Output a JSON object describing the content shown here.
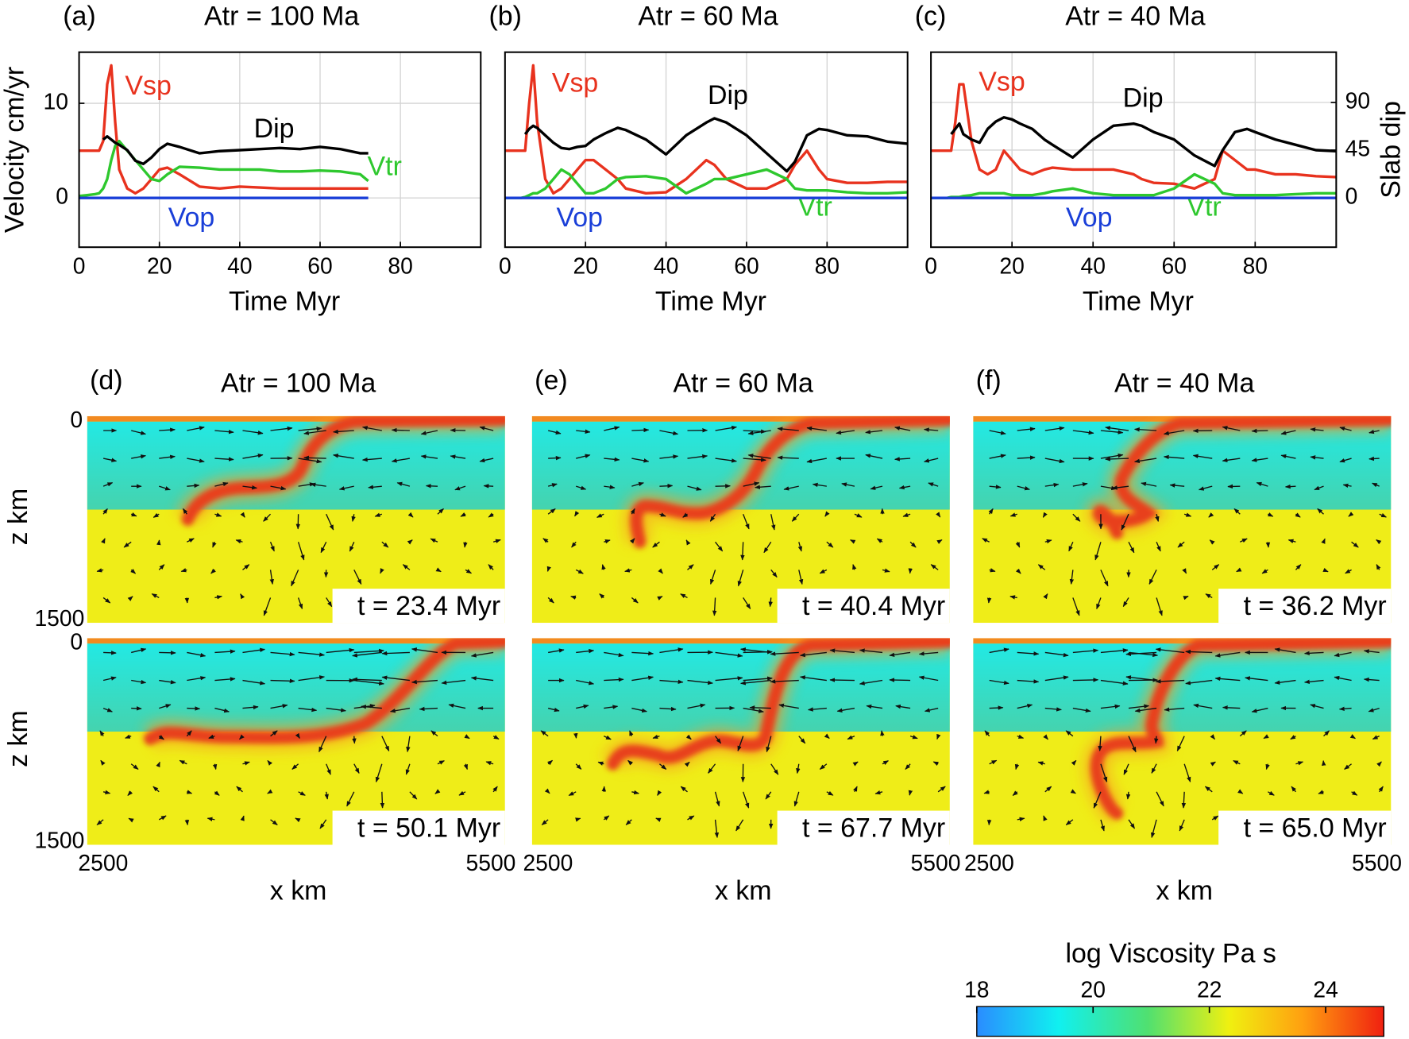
{
  "chart_data": [
    {
      "type": "line",
      "label": "(a)",
      "title": "Atr = 100 Ma",
      "xlabel": "Time Myr",
      "ylabel": "Velocity cm/yr",
      "xlim": [
        0,
        100
      ],
      "xticks": [
        0,
        20,
        40,
        60,
        80
      ],
      "ylim": [
        -5.2,
        15.4
      ],
      "yticks": [
        0,
        10
      ],
      "y2lim": [
        -46.7,
        137.5
      ],
      "grid": true,
      "x": [
        0,
        2,
        4,
        5,
        6,
        7,
        8,
        9,
        10,
        12,
        14,
        16,
        18,
        20,
        22,
        25,
        30,
        35,
        40,
        45,
        50,
        55,
        60,
        65,
        70,
        72
      ],
      "series": [
        {
          "name": "Vsp",
          "color": "#e8321e",
          "values": [
            5,
            5,
            5,
            5,
            6,
            12,
            14,
            8,
            3,
            1,
            0.5,
            1,
            2,
            3,
            3.2,
            2.5,
            1.2,
            1,
            1.2,
            1.1,
            1,
            1,
            1,
            1,
            1,
            1
          ]
        },
        {
          "name": "Vtr",
          "color": "#2ec82e",
          "values": [
            0.2,
            0.3,
            0.4,
            0.5,
            1,
            2,
            4,
            5.5,
            6,
            5,
            4,
            3,
            2,
            1.8,
            2.5,
            3.3,
            3.2,
            3,
            3,
            3,
            2.8,
            2.8,
            2.9,
            2.8,
            2.5,
            1.8
          ]
        },
        {
          "name": "Vop",
          "color": "#1a3fd8",
          "values": [
            0,
            0,
            0,
            0,
            0,
            0,
            0,
            0,
            0,
            0,
            0,
            0,
            0,
            0,
            0,
            0,
            0,
            0,
            0,
            0,
            0,
            0,
            0,
            0,
            0,
            0
          ]
        },
        {
          "name": "Dip",
          "color": "#000000",
          "axis": "y2",
          "values": [
            null,
            null,
            null,
            null,
            55,
            58,
            55,
            52,
            50,
            45,
            35,
            32,
            38,
            46,
            51,
            48,
            42,
            44,
            45,
            46,
            47,
            46,
            48,
            46,
            42,
            42
          ]
        }
      ]
    },
    {
      "type": "line",
      "label": "(b)",
      "title": "Atr = 60 Ma",
      "xlabel": "Time Myr",
      "xlim": [
        0,
        100
      ],
      "xticks": [
        0,
        20,
        40,
        60,
        80
      ],
      "ylim": [
        -5.2,
        15.4
      ],
      "y2lim": [
        -46.7,
        137.5
      ],
      "grid": true,
      "x": [
        0,
        2,
        4,
        5,
        6,
        7,
        8,
        10,
        12,
        14,
        16,
        18,
        20,
        22,
        25,
        28,
        30,
        35,
        40,
        45,
        50,
        52,
        55,
        60,
        65,
        70,
        72,
        75,
        78,
        80,
        85,
        90,
        95,
        100
      ],
      "series": [
        {
          "name": "Vsp",
          "color": "#e8321e",
          "values": [
            5,
            5,
            5,
            5,
            10,
            14,
            8,
            2,
            0.5,
            1,
            2,
            3,
            4,
            4,
            3,
            2,
            1,
            0.5,
            0.6,
            2,
            4,
            3.5,
            2,
            1,
            1,
            2,
            3.5,
            5,
            3,
            2,
            1.6,
            1.6,
            1.7,
            1.7
          ]
        },
        {
          "name": "Vtr",
          "color": "#2ec82e",
          "values": [
            0,
            0,
            0,
            0.1,
            0.3,
            0.5,
            0.5,
            1,
            2,
            3,
            2.5,
            1.5,
            0.5,
            0.5,
            1,
            2,
            2.2,
            2.3,
            2,
            0.5,
            1.5,
            2,
            2,
            2.5,
            3,
            2,
            1,
            0.8,
            0.8,
            0.8,
            0.6,
            0.5,
            0.5,
            0.6
          ]
        },
        {
          "name": "Vop",
          "color": "#1a3fd8",
          "values": [
            0,
            0,
            0,
            0,
            0,
            0,
            0,
            0,
            0,
            0,
            0,
            0,
            0,
            0,
            0,
            0,
            0,
            0,
            0,
            0,
            0,
            0,
            0,
            0,
            0,
            0,
            0,
            0,
            0,
            0,
            0,
            0,
            0,
            0
          ]
        },
        {
          "name": "Dip",
          "color": "#000000",
          "axis": "y2",
          "values": [
            null,
            null,
            null,
            60,
            65,
            68,
            66,
            59,
            52,
            47,
            46,
            48,
            49,
            55,
            61,
            66,
            64,
            55,
            41,
            59,
            71,
            75,
            71,
            59,
            42,
            25,
            34,
            59,
            65,
            64,
            59,
            58,
            53,
            51
          ]
        }
      ]
    },
    {
      "type": "line",
      "label": "(c)",
      "title": "Atr = 40 Ma",
      "xlabel": "Time Myr",
      "y2label": "Slab dip",
      "xlim": [
        0,
        100
      ],
      "xticks": [
        0,
        20,
        40,
        60,
        80
      ],
      "ylim": [
        -5.2,
        15.4
      ],
      "y2lim": [
        -46.7,
        137.5
      ],
      "y2ticks": [
        0,
        45,
        90
      ],
      "grid": true,
      "x": [
        0,
        2,
        4,
        5,
        6,
        7,
        8,
        10,
        12,
        14,
        16,
        18,
        20,
        22,
        25,
        28,
        30,
        35,
        40,
        45,
        50,
        52,
        55,
        60,
        65,
        70,
        72,
        75,
        78,
        80,
        85,
        90,
        95,
        100
      ],
      "series": [
        {
          "name": "Vsp",
          "color": "#e8321e",
          "values": [
            5,
            5,
            5,
            5,
            8,
            12,
            12,
            6,
            3,
            2.5,
            3,
            5,
            4,
            3,
            2.5,
            3,
            3.2,
            3,
            3,
            3,
            2.5,
            2,
            1.6,
            1.5,
            1,
            2,
            5,
            4,
            3,
            3,
            2.5,
            2.5,
            2.3,
            2.2
          ]
        },
        {
          "name": "Vtr",
          "color": "#2ec82e",
          "values": [
            0,
            0,
            0,
            0.1,
            0.1,
            0.1,
            0.2,
            0.3,
            0.5,
            0.5,
            0.5,
            0.5,
            0.3,
            0.3,
            0.3,
            0.5,
            0.7,
            1,
            0.5,
            0.3,
            0.3,
            0.3,
            0.3,
            1,
            2.5,
            1.5,
            0.5,
            0.3,
            0.3,
            0.3,
            0.3,
            0.4,
            0.5,
            0.5
          ]
        },
        {
          "name": "Vop",
          "color": "#1a3fd8",
          "values": [
            0,
            0,
            0,
            0,
            0,
            0,
            0,
            0,
            0,
            0,
            0,
            0,
            0,
            0,
            0,
            0,
            0,
            0,
            0,
            0,
            0,
            0,
            0,
            0,
            0,
            0,
            0,
            0,
            0,
            0,
            0,
            0,
            0,
            0
          ]
        },
        {
          "name": "Dip",
          "color": "#000000",
          "axis": "y2",
          "values": [
            null,
            null,
            null,
            60,
            65,
            70,
            60,
            55,
            52,
            65,
            72,
            76,
            74,
            70,
            65,
            55,
            50,
            38,
            55,
            68,
            70,
            68,
            62,
            55,
            40,
            30,
            45,
            62,
            65,
            62,
            55,
            50,
            45,
            44
          ]
        }
      ]
    }
  ],
  "models": {
    "columns": [
      {
        "label": "(d)",
        "title": "Atr = 100 Ma",
        "times": [
          "t = 23.4 Myr",
          "t = 50.1 Myr"
        ]
      },
      {
        "label": "(e)",
        "title": "Atr = 60 Ma",
        "times": [
          "t = 40.4 Myr",
          "t = 67.7 Myr"
        ]
      },
      {
        "label": "(f)",
        "title": "Atr = 40 Ma",
        "times": [
          "t = 36.2 Myr",
          "t = 65.0 Myr"
        ]
      }
    ],
    "zlabel": "z km",
    "zticks": [
      0,
      1500
    ],
    "xlabel": "x km",
    "xticks": [
      2500,
      5500
    ]
  },
  "colorbar": {
    "title": "log Viscosity Pa s",
    "lim": [
      18,
      25
    ],
    "ticks": [
      18,
      20,
      22,
      24
    ]
  }
}
